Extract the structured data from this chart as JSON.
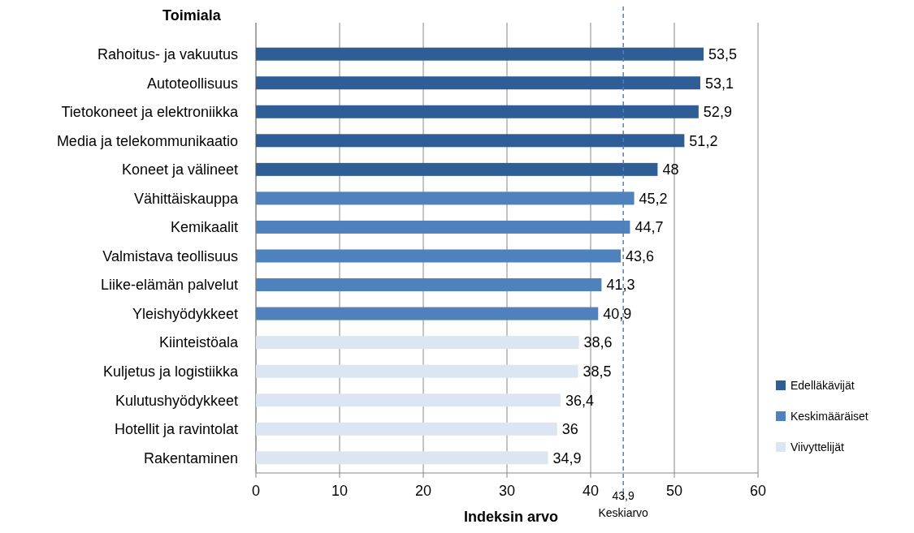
{
  "chart_data": {
    "type": "bar",
    "orientation": "horizontal",
    "ylabel": "Toimiala",
    "xlabel": "Indeksin arvo",
    "categories": [
      "Rahoitus- ja vakuutus",
      "Autoteollisuus",
      "Tietokoneet ja elektroniikka",
      "Media ja telekommunikaatio",
      "Koneet ja välineet",
      "Vähittäiskauppa",
      "Kemikaalit",
      "Valmistava teollisuus",
      "Liike-elämän palvelut",
      "Yleishyödykkeet",
      "Kiinteistöala",
      "Kuljetus ja logistiikka",
      "Kulutushyödykkeet",
      "Hotellit ja ravintolat",
      "Rakentaminen"
    ],
    "series": [
      {
        "name": "Edelläkävijät",
        "color": "#2f5d95",
        "values": [
          53.5,
          53.1,
          52.9,
          51.2,
          48,
          null,
          null,
          null,
          null,
          null,
          null,
          null,
          null,
          null,
          null
        ],
        "value_labels": [
          "53,5",
          "53,1",
          "52,9",
          "51,2",
          "48",
          null,
          null,
          null,
          null,
          null,
          null,
          null,
          null,
          null,
          null
        ]
      },
      {
        "name": "Keskimääräiset",
        "color": "#4f81bd",
        "values": [
          null,
          null,
          null,
          null,
          null,
          45.2,
          44.7,
          43.6,
          41.3,
          40.9,
          null,
          null,
          null,
          null,
          null
        ],
        "value_labels": [
          null,
          null,
          null,
          null,
          null,
          "45,2",
          "44,7",
          "43,6",
          "41,3",
          "40,9",
          null,
          null,
          null,
          null,
          null
        ]
      },
      {
        "name": "Viivyttelijät",
        "color": "#dce6f2",
        "values": [
          null,
          null,
          null,
          null,
          null,
          null,
          null,
          null,
          null,
          null,
          38.6,
          38.5,
          36.4,
          36,
          34.9
        ],
        "value_labels": [
          null,
          null,
          null,
          null,
          null,
          null,
          null,
          null,
          null,
          null,
          "38,6",
          "38,5",
          "36,4",
          "36",
          "34,9"
        ]
      }
    ],
    "xlim": [
      0,
      60
    ],
    "xticks": [
      0,
      10,
      20,
      30,
      40,
      50,
      60
    ],
    "grid": "x",
    "legend": "right",
    "ref_lines": [
      {
        "axis": "x",
        "value": 43.9,
        "label": "Keskiarvo",
        "color": "#4f81bd",
        "line_style": "dashed"
      }
    ],
    "annotations": [
      {
        "text": "43,9",
        "x": 43.9
      }
    ]
  }
}
